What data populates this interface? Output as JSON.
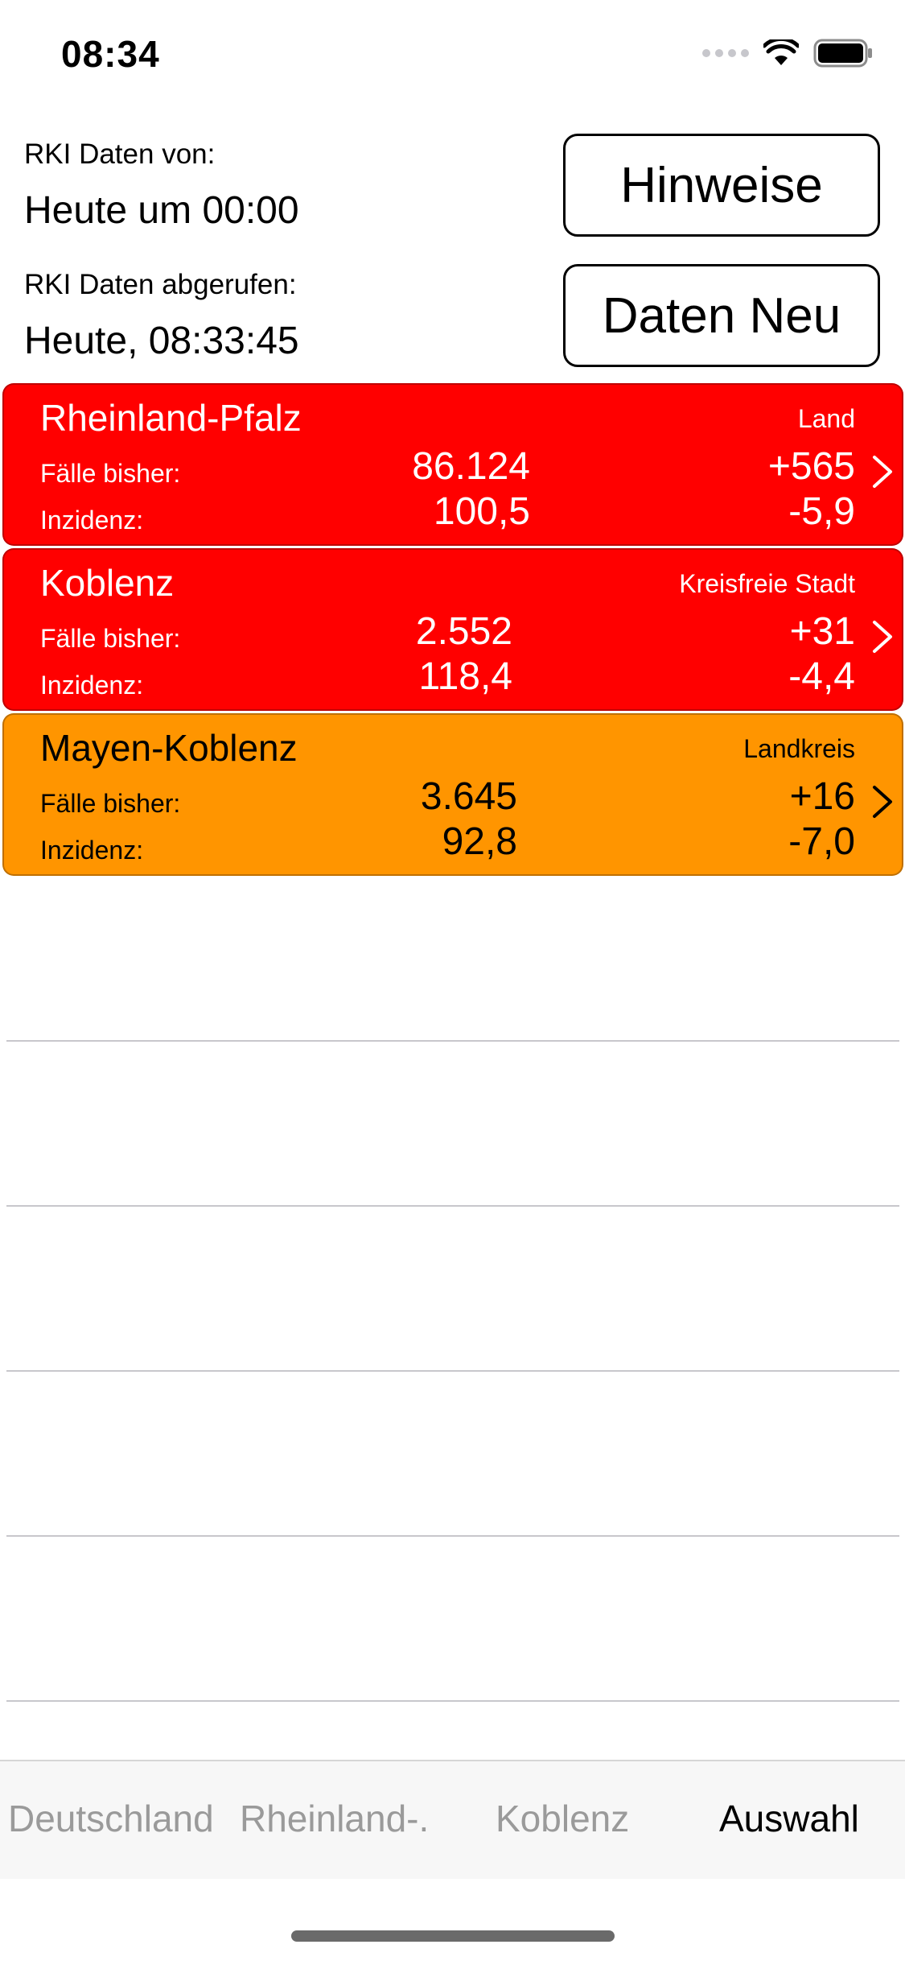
{
  "status_bar": {
    "time": "08:34"
  },
  "header": {
    "data_from_label": "RKI Daten von:",
    "data_from_value": "Heute um 00:00",
    "fetched_label": "RKI Daten abgerufen:",
    "fetched_value": "Heute, 08:33:45",
    "hints_button": "Hinweise",
    "refresh_button": "Daten Neu"
  },
  "regions": [
    {
      "name": "Rheinland-Pfalz",
      "type": "Land",
      "cases_label": "Fälle bisher:",
      "cases": "86.124",
      "cases_delta": "+565",
      "incidence_label": "Inzidenz:",
      "incidence": "100,5",
      "incidence_delta": "-5,9",
      "color": "#ff0000",
      "text_color": "#ffffff"
    },
    {
      "name": "Koblenz",
      "type": "Kreisfreie Stadt",
      "cases_label": "Fälle bisher:",
      "cases": "2.552",
      "cases_delta": "+31",
      "incidence_label": "Inzidenz:",
      "incidence": "118,4",
      "incidence_delta": "-4,4",
      "color": "#ff0000",
      "text_color": "#ffffff"
    },
    {
      "name": "Mayen-Koblenz",
      "type": "Landkreis",
      "cases_label": "Fälle bisher:",
      "cases": "3.645",
      "cases_delta": "+16",
      "incidence_label": "Inzidenz:",
      "incidence": "92,8",
      "incidence_delta": "-7,0",
      "color": "#ff9500",
      "text_color": "#000000"
    }
  ],
  "tab_bar": {
    "tabs": [
      "Deutschland",
      "Rheinland-.",
      "Koblenz",
      "Auswahl"
    ],
    "active": "Auswahl"
  }
}
